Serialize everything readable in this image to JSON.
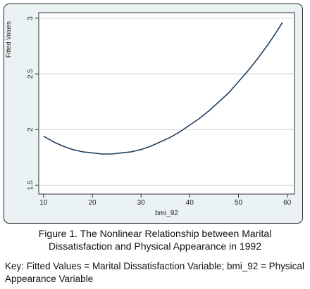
{
  "chart_data": {
    "type": "line",
    "xlabel": "bmi_92",
    "ylabel": "Fitted Values",
    "xlim": [
      9,
      61.5
    ],
    "ylim": [
      1.42,
      3.05
    ],
    "xticks": [
      "10",
      "20",
      "30",
      "40",
      "50",
      "60"
    ],
    "yticks": [
      "1.5",
      "2",
      "2.5",
      "3"
    ],
    "grid": "horizontal",
    "series": [
      {
        "color": "#1f3f5f",
        "x": [
          10,
          12,
          14,
          16,
          18,
          20,
          22,
          24,
          26,
          28,
          30,
          32,
          34,
          36,
          38,
          40,
          42,
          44,
          46,
          48,
          50,
          52,
          54,
          56,
          58,
          59
        ],
        "y": [
          1.94,
          1.89,
          1.85,
          1.82,
          1.8,
          1.79,
          1.78,
          1.78,
          1.79,
          1.8,
          1.82,
          1.85,
          1.89,
          1.93,
          1.98,
          2.04,
          2.1,
          2.17,
          2.25,
          2.33,
          2.43,
          2.53,
          2.64,
          2.76,
          2.89,
          2.96
        ]
      }
    ]
  },
  "caption": {
    "line1": "Figure 1. The Nonlinear Relationship between Marital",
    "line2": "Dissatisfaction and Physical Appearance in 1992"
  },
  "key": {
    "line1": "Key: Fitted Values = Marital Dissatisfaction Variable; bmi_92 = Physical",
    "line2": "Appearance Variable"
  }
}
